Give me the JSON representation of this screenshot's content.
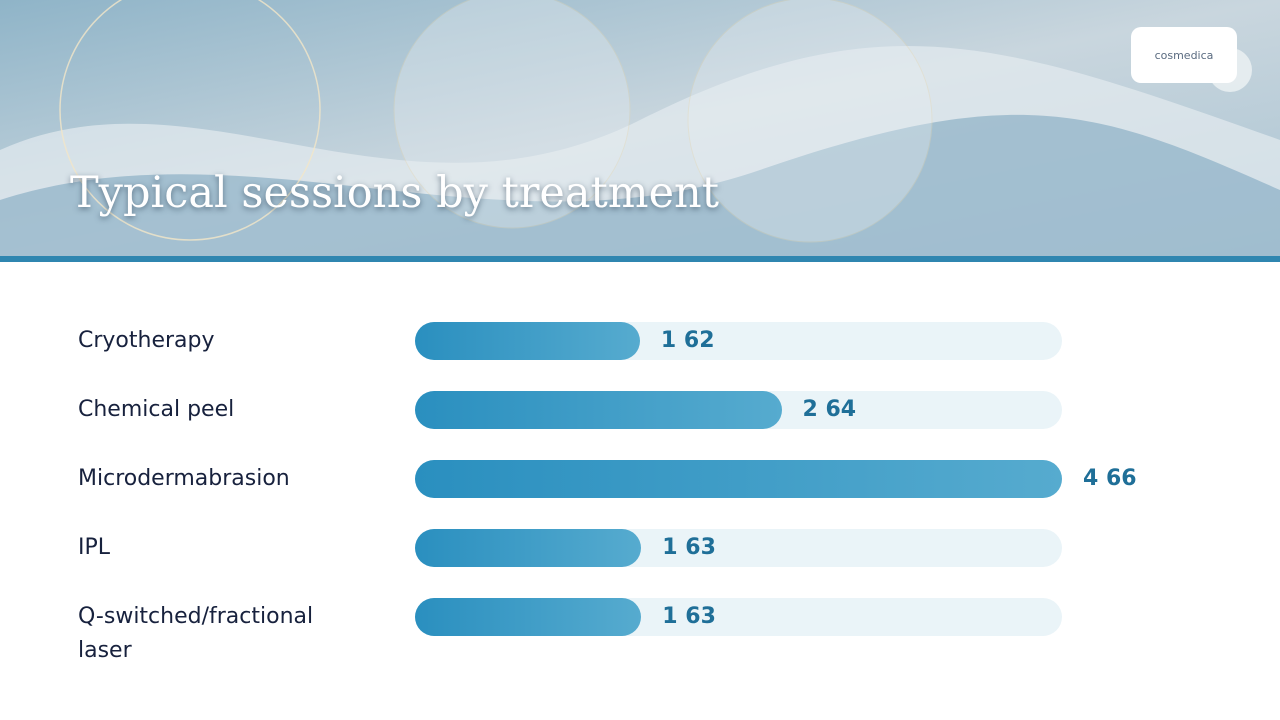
{
  "header": {
    "title": "Typical sessions by treatment",
    "logo": "cosmedica"
  },
  "chart_data": {
    "type": "bar",
    "orientation": "horizontal",
    "categories": [
      "Cryotherapy",
      "Chemical peel",
      "Microdermabrasion",
      "IPL",
      "Q-switched/fractional laser"
    ],
    "values": [
      1.62,
      2.64,
      4.66,
      1.63,
      1.63
    ],
    "value_labels": [
      "1 62",
      "2 64",
      "4 66",
      "1 63",
      "1 63"
    ],
    "color": "#2a8fbf"
  }
}
